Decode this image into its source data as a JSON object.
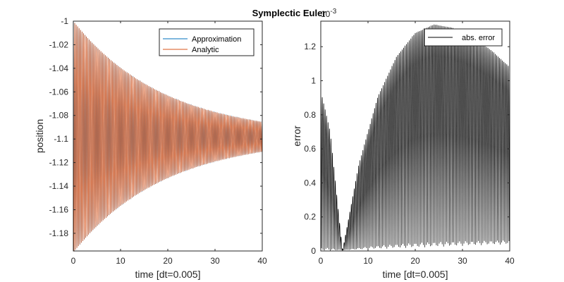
{
  "title": "Symplectic Euler",
  "colors": {
    "approximation": "#0072BD",
    "analytic": "#D95319",
    "error": "#000000",
    "axes": "#262626"
  },
  "chart_data": [
    {
      "type": "line",
      "xlabel": "time [dt=0.005]",
      "ylabel": "position",
      "xlim": [
        0,
        40
      ],
      "ylim": [
        -1.195,
        -1.0
      ],
      "xticks": [
        0,
        10,
        20,
        30,
        40
      ],
      "yticks": [
        -1.18,
        -1.16,
        -1.14,
        -1.12,
        -1.1,
        -1.08,
        -1.06,
        -1.04,
        -1.02,
        -1
      ],
      "ytick_labels": [
        "-1.18",
        "-1.16",
        "-1.14",
        "-1.12",
        "-1.1",
        "-1.08",
        "-1.06",
        "-1.04",
        "-1.02",
        "-1"
      ],
      "legend_position": "top-right",
      "series": [
        {
          "name": "Approximation",
          "model": "damped-oscillation",
          "equilibrium": -1.0981,
          "initial_amplitude": 0.0981,
          "decay_rate": 0.0516,
          "cycles": 130
        },
        {
          "name": "Analytic",
          "model": "damped-oscillation",
          "equilibrium": -1.0981,
          "initial_amplitude": 0.0981,
          "decay_rate": 0.0516,
          "cycles": 130
        }
      ]
    },
    {
      "type": "line",
      "xlabel": "time [dt=0.005]",
      "ylabel": "error",
      "xlim": [
        0,
        40
      ],
      "ylim": [
        0,
        1.35
      ],
      "y_exponent_label": "10",
      "y_exponent": "-3",
      "xticks": [
        0,
        10,
        20,
        30,
        40
      ],
      "yticks": [
        0,
        0.2,
        0.4,
        0.6,
        0.8,
        1,
        1.2
      ],
      "ytick_labels": [
        "0",
        "0.2",
        "0.4",
        "0.6",
        "0.8",
        "1",
        "1.2"
      ],
      "legend_position": "top-right",
      "series": [
        {
          "name": "abs. error",
          "model": "oscillating-envelope",
          "envelope_points": [
            [
              0,
              0.94
            ],
            [
              2,
              0.7
            ],
            [
              4.6,
              0.0
            ],
            [
              8,
              0.5
            ],
            [
              12,
              0.9
            ],
            [
              16,
              1.14
            ],
            [
              20,
              1.28
            ],
            [
              24,
              1.33
            ],
            [
              28,
              1.31
            ],
            [
              32,
              1.26
            ],
            [
              36,
              1.18
            ],
            [
              40,
              1.08
            ]
          ],
          "floor_points": [
            [
              0,
              0.0
            ],
            [
              10,
              0.01
            ],
            [
              20,
              0.02
            ],
            [
              30,
              0.03
            ],
            [
              40,
              0.04
            ]
          ],
          "cycles": 130
        }
      ]
    }
  ]
}
